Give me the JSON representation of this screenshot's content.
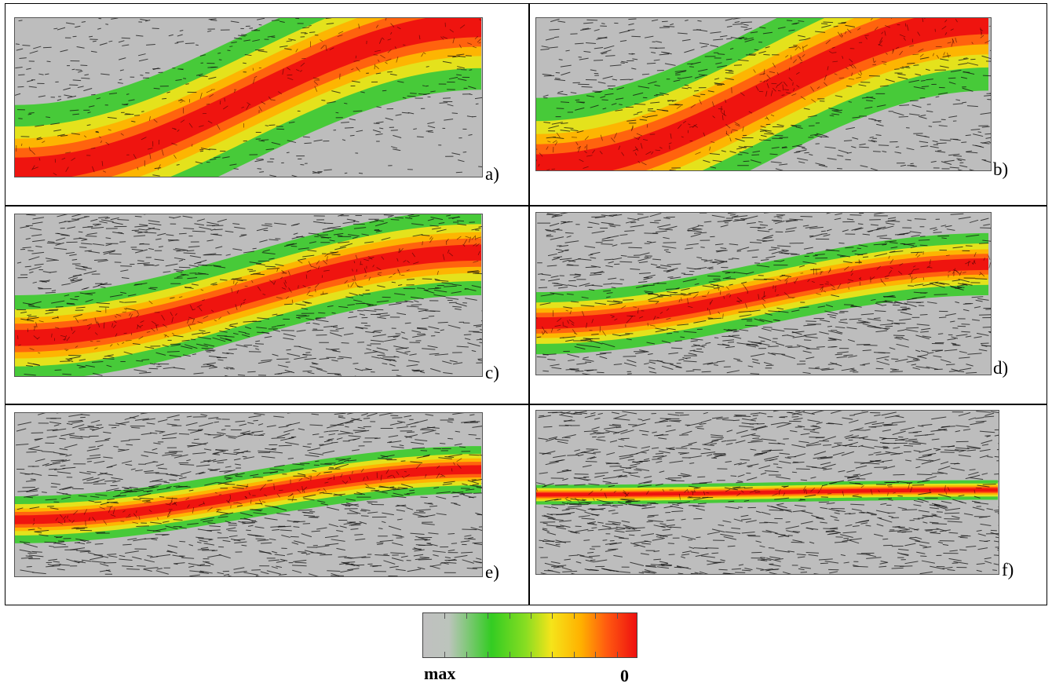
{
  "panels": [
    {
      "label": "a)",
      "amp": 0.95,
      "width": 0.34,
      "density": 0.45
    },
    {
      "label": "b)",
      "amp": 1.0,
      "width": 0.38,
      "density": 0.65
    },
    {
      "label": "c)",
      "amp": 0.55,
      "width": 0.22,
      "density": 0.85
    },
    {
      "label": "d)",
      "amp": 0.38,
      "width": 0.16,
      "density": 0.9
    },
    {
      "label": "e)",
      "amp": 0.32,
      "width": 0.12,
      "density": 0.95
    },
    {
      "label": "f)",
      "amp": 0.03,
      "width": 0.05,
      "density": 1.0
    }
  ],
  "colorbar": {
    "left_label": "max",
    "right_label": "0",
    "colors": [
      "#c0c0c0",
      "#33cc22",
      "#f5e41a",
      "#ffb000",
      "#ff5a10",
      "#ee1010"
    ]
  }
}
